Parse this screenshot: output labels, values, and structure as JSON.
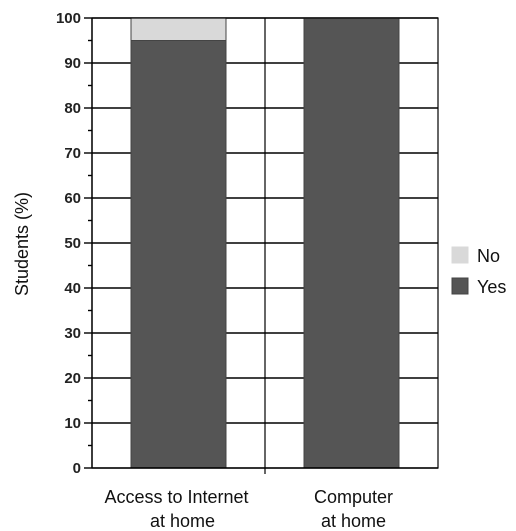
{
  "chart_data": {
    "type": "bar",
    "stacked": true,
    "percent": true,
    "categories": [
      [
        "Access to Internet",
        "at home"
      ],
      [
        "Computer",
        "at home"
      ]
    ],
    "series": [
      {
        "name": "Yes",
        "values": [
          95,
          100
        ],
        "color": "#555555"
      },
      {
        "name": "No",
        "values": [
          5,
          0
        ],
        "color": "#d9d9d9"
      }
    ],
    "title": "",
    "xlabel": "",
    "ylabel": "Students (%)",
    "ylim": [
      0,
      100
    ],
    "yticks": [
      0,
      10,
      20,
      30,
      40,
      50,
      60,
      70,
      80,
      90,
      100
    ],
    "grid": true,
    "legend": {
      "placement": "right",
      "order": [
        "No",
        "Yes"
      ]
    }
  }
}
